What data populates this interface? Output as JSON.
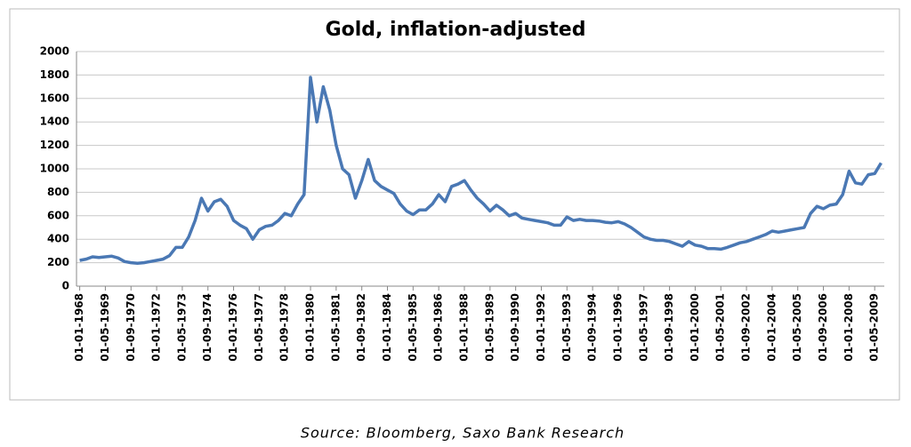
{
  "chart_data": {
    "type": "line",
    "title": "Gold, inflation-adjusted",
    "categories": [
      "01-01-1968",
      null,
      null,
      null,
      "01-05-1969",
      null,
      null,
      null,
      "01-09-1970",
      null,
      null,
      null,
      "01-01-1972",
      null,
      null,
      null,
      "01-05-1973",
      null,
      null,
      null,
      "01-09-1974",
      null,
      null,
      null,
      "01-01-1976",
      null,
      null,
      null,
      "01-05-1977",
      null,
      null,
      null,
      "01-09-1978",
      null,
      null,
      null,
      "01-01-1980",
      null,
      null,
      null,
      "01-05-1981",
      null,
      null,
      null,
      "01-09-1982",
      null,
      null,
      null,
      "01-01-1984",
      null,
      null,
      null,
      "01-05-1985",
      null,
      null,
      null,
      "01-09-1986",
      null,
      null,
      null,
      "01-01-1988",
      null,
      null,
      null,
      "01-05-1989",
      null,
      null,
      null,
      "01-09-1990",
      null,
      null,
      null,
      "01-01-1992",
      null,
      null,
      null,
      "01-05-1993",
      null,
      null,
      null,
      "01-09-1994",
      null,
      null,
      null,
      "01-01-1996",
      null,
      null,
      null,
      "01-05-1997",
      null,
      null,
      null,
      "01-09-1998",
      null,
      null,
      null,
      "01-01-2000",
      null,
      null,
      null,
      "01-05-2001",
      null,
      null,
      null,
      "01-09-2002",
      null,
      null,
      null,
      "01-01-2004",
      null,
      null,
      null,
      "01-05-2005",
      null,
      null,
      null,
      "01-09-2006",
      null,
      null,
      null,
      "01-01-2008",
      null,
      null,
      null,
      "01-05-2009",
      null
    ],
    "values": [
      220,
      230,
      250,
      245,
      250,
      255,
      240,
      210,
      200,
      195,
      200,
      210,
      220,
      230,
      260,
      330,
      330,
      420,
      560,
      750,
      640,
      720,
      740,
      680,
      560,
      520,
      490,
      400,
      480,
      510,
      520,
      560,
      620,
      600,
      700,
      780,
      1780,
      1400,
      1700,
      1500,
      1200,
      1000,
      950,
      750,
      900,
      1080,
      900,
      850,
      820,
      790,
      700,
      640,
      610,
      650,
      650,
      700,
      780,
      720,
      850,
      870,
      900,
      820,
      750,
      700,
      640,
      690,
      650,
      600,
      620,
      580,
      570,
      560,
      550,
      540,
      520,
      520,
      590,
      560,
      570,
      560,
      560,
      555,
      545,
      540,
      550,
      530,
      500,
      460,
      420,
      400,
      390,
      390,
      380,
      360,
      340,
      380,
      350,
      340,
      320,
      320,
      315,
      330,
      350,
      370,
      380,
      400,
      420,
      440,
      470,
      460,
      470,
      480,
      490,
      500,
      620,
      680,
      660,
      690,
      700,
      780,
      980,
      880,
      870,
      950,
      960,
      1050
    ],
    "color": "#4a78b4",
    "ylim": [
      0,
      2000
    ],
    "yticks": [
      0,
      200,
      400,
      600,
      800,
      1000,
      1200,
      1400,
      1600,
      1800,
      2000
    ],
    "grid": true
  },
  "source": "Source: Bloomberg, Saxo Bank Research"
}
